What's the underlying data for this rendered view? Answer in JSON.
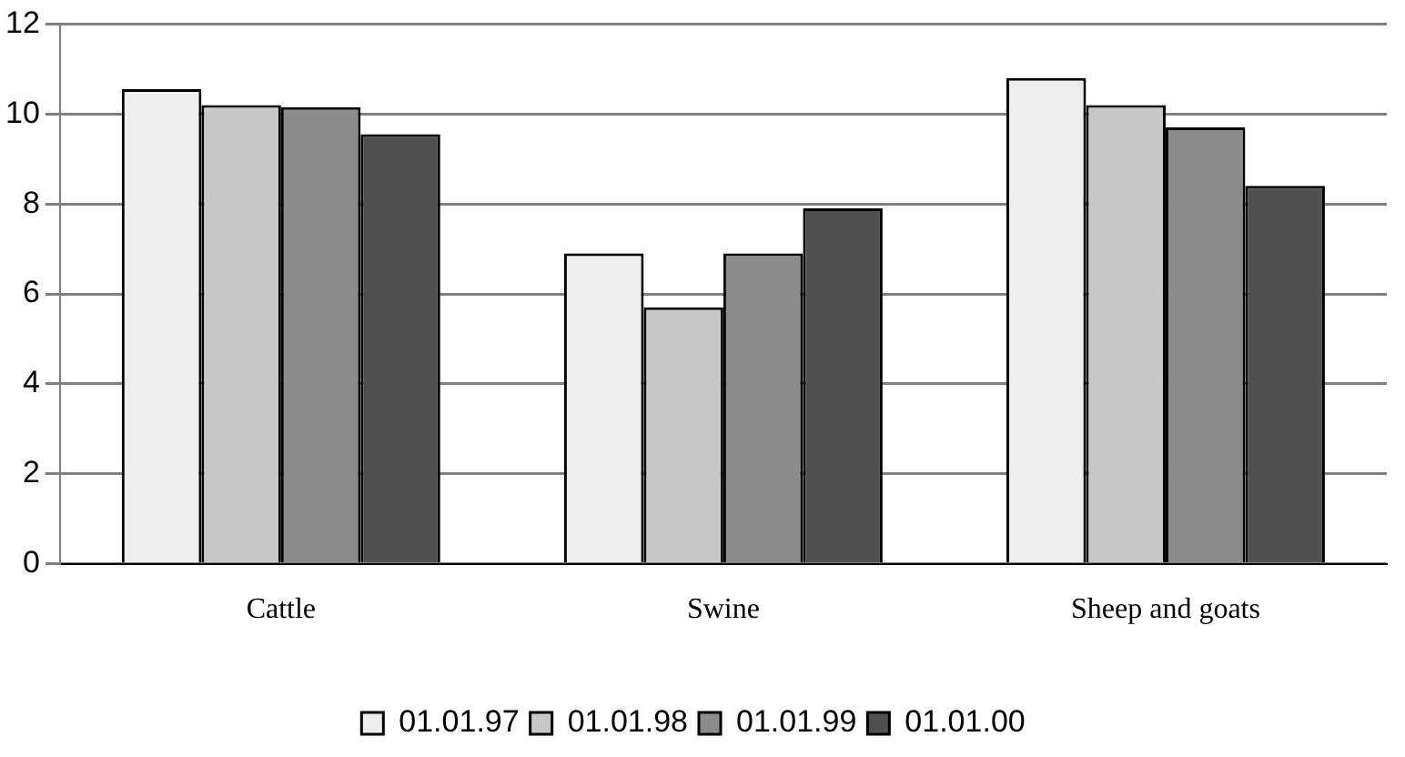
{
  "chart_data": {
    "type": "bar",
    "categories": [
      "Cattle",
      "Swine",
      "Sheep and goats"
    ],
    "series": [
      {
        "name": "01.01.97",
        "color": "#eeeeee",
        "values": [
          10.55,
          6.9,
          10.8
        ]
      },
      {
        "name": "01.01.98",
        "color": "#c8c8c8",
        "values": [
          10.2,
          5.7,
          10.2
        ]
      },
      {
        "name": "01.01.99",
        "color": "#8c8c8c",
        "values": [
          10.15,
          6.9,
          9.7
        ]
      },
      {
        "name": "01.01.00",
        "color": "#505050",
        "values": [
          9.55,
          7.9,
          8.4
        ]
      }
    ],
    "ylim": [
      0,
      12
    ],
    "yticks": [
      0,
      2,
      4,
      6,
      8,
      10,
      12
    ],
    "grid": "y",
    "legend": "bottom"
  }
}
